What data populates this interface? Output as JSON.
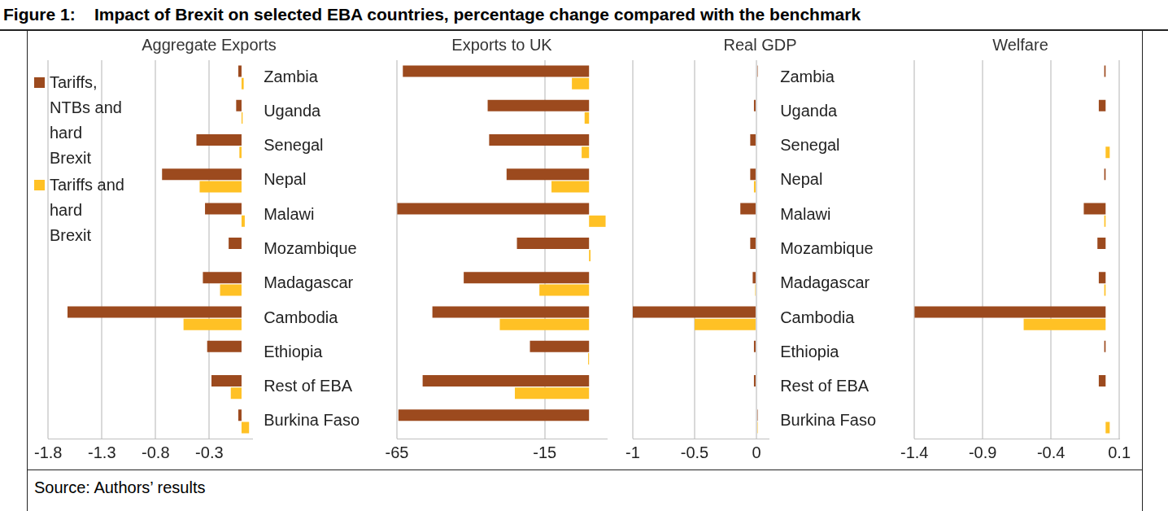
{
  "figure_label": "Figure 1:",
  "title": "Impact of Brexit on selected EBA countries, percentage change compared with the benchmark",
  "source": "Source: Authors’ results",
  "chart_data": [
    {
      "type": "bar",
      "orientation": "horizontal",
      "title": "Aggregate Exports",
      "grid": true,
      "legend": "upper left",
      "categories": [
        "Zambia",
        "Uganda",
        "Senegal",
        "Nepal",
        "Malawi",
        "Mozambique",
        "Madagascar",
        "Cambodia",
        "Ethiopia",
        "Rest of EBA",
        "Burkina Faso"
      ],
      "series": [
        {
          "name": "Tariffs, NTBs and hard Brexit",
          "color": "#9C4A1E",
          "values": [
            -0.03,
            -0.05,
            -0.42,
            -0.74,
            -0.34,
            -0.12,
            -0.36,
            -1.62,
            -0.32,
            -0.28,
            -0.03
          ]
        },
        {
          "name": "Tariffs and hard Brexit",
          "color": "#FFC125",
          "values": [
            0.02,
            0.01,
            -0.02,
            -0.39,
            0.03,
            0,
            -0.2,
            -0.54,
            0,
            -0.1,
            0.07
          ]
        }
      ],
      "xlim": [
        -1.8,
        0.1
      ],
      "xticks": [
        -1.8,
        -1.3,
        -0.8,
        -0.3
      ]
    },
    {
      "type": "bar",
      "orientation": "horizontal",
      "title": "Exports to UK",
      "grid": true,
      "tick_labels": "x",
      "categories": [
        "Zambia",
        "Uganda",
        "Senegal",
        "Nepal",
        "Malawi",
        "Mozambique",
        "Madagascar",
        "Cambodia",
        "Ethiopia",
        "Rest of EBA",
        "Burkina Faso"
      ],
      "series": [
        {
          "name": "Tariffs, NTBs and hard Brexit",
          "color": "#9C4A1E",
          "values": [
            -63,
            -34.3,
            -33.8,
            -27.9,
            -64.9,
            -24.4,
            -42.4,
            -53,
            -20,
            -56.3,
            -64.5
          ]
        },
        {
          "name": "Tariffs and hard Brexit",
          "color": "#FFC125",
          "values": [
            -5.8,
            -1.5,
            -2.5,
            -12.7,
            5.6,
            0.5,
            -16.8,
            -30.2,
            -0.3,
            -25.1,
            0
          ]
        }
      ],
      "xlim": [
        -65,
        6
      ],
      "xticks": [
        -65,
        -15
      ]
    },
    {
      "type": "bar",
      "orientation": "horizontal",
      "title": "Real GDP",
      "grid": true,
      "categories": [
        "Zambia",
        "Uganda",
        "Senegal",
        "Nepal",
        "Malawi",
        "Mozambique",
        "Madagascar",
        "Cambodia",
        "Ethiopia",
        "Rest of EBA",
        "Burkina Faso"
      ],
      "series": [
        {
          "name": "Tariffs, NTBs and hard Brexit",
          "color": "#9C4A1E",
          "values": [
            0.01,
            -0.02,
            -0.05,
            -0.05,
            -0.13,
            -0.05,
            -0.03,
            -1,
            -0.02,
            -0.02,
            0.01
          ]
        },
        {
          "name": "Tariffs and hard Brexit",
          "color": "#FFC125",
          "values": [
            0,
            0,
            0,
            -0.02,
            0,
            0,
            -0.01,
            -0.5,
            0,
            0,
            0.01
          ]
        }
      ],
      "xlim": [
        -1,
        0.1
      ],
      "xticks": [
        -1,
        -0.5,
        0
      ]
    },
    {
      "type": "bar",
      "orientation": "horizontal",
      "title": "Welfare",
      "grid": true,
      "tick_labels": "x",
      "categories": [
        "Zambia",
        "Uganda",
        "Senegal",
        "Nepal",
        "Malawi",
        "Mozambique",
        "Madagascar",
        "Cambodia",
        "Ethiopia",
        "Rest of EBA",
        "Burkina Faso"
      ],
      "series": [
        {
          "name": "Tariffs, NTBs and hard Brexit",
          "color": "#9C4A1E",
          "values": [
            -0.01,
            -0.05,
            0,
            -0.01,
            -0.16,
            -0.06,
            -0.05,
            -1.4,
            -0.01,
            -0.05,
            0
          ]
        },
        {
          "name": "Tariffs and hard Brexit",
          "color": "#FFC125",
          "values": [
            0,
            0,
            0.03,
            0,
            -0.01,
            0,
            -0.01,
            -0.6,
            0,
            0,
            0.03
          ]
        }
      ],
      "xlim": [
        -1.4,
        0.1
      ],
      "xticks": [
        -1.4,
        -0.9,
        -0.4,
        0.1
      ]
    }
  ]
}
